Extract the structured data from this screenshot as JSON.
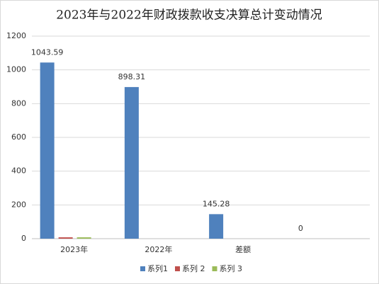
{
  "chart_data": {
    "type": "bar",
    "title": "2023年与2022年财政拨款收支决算总计变动情况",
    "categories": [
      "2023年",
      "2022年",
      "差额",
      null
    ],
    "series": [
      {
        "name": "系列1",
        "color": "#4f81bd",
        "values": [
          1043.59,
          898.31,
          145.28,
          0
        ],
        "show_labels": true
      },
      {
        "name": "系列 2",
        "color": "#c0504d",
        "values": [
          8,
          0,
          0,
          0
        ],
        "show_labels": false
      },
      {
        "name": "系列 3",
        "color": "#9bbb59",
        "values": [
          8,
          0,
          0,
          0
        ],
        "show_labels": false
      }
    ],
    "ylim": [
      0,
      1200
    ],
    "yticks": [
      0,
      200,
      400,
      600,
      800,
      1000,
      1200
    ],
    "grid": true,
    "legend": "bottom"
  }
}
